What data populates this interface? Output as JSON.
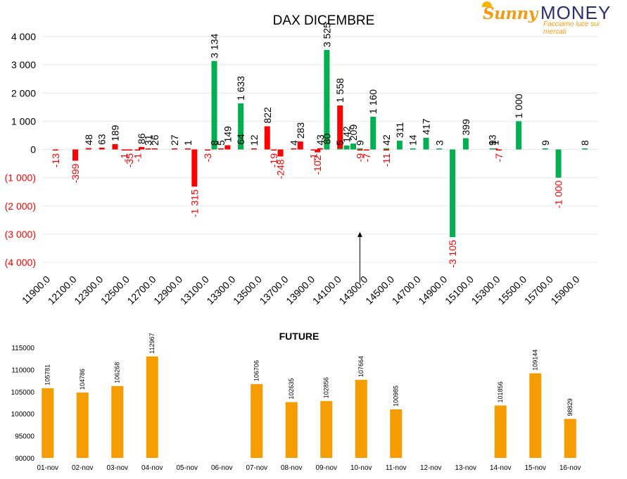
{
  "logo": {
    "brand_left": "Sunny",
    "brand_right": "MONEY",
    "tagline": "Facciamo luce sui mercati"
  },
  "colors": {
    "positive": "#00b050",
    "negative": "#ff0000",
    "future_bar": "#f59c00",
    "grid": "#e8e8e8"
  },
  "chart_data": [
    {
      "type": "bar",
      "title": "DAX DICEMBRE",
      "ylim": [
        -4000,
        4000
      ],
      "ytick_labels": [
        "4 000",
        "3 000",
        "2 000",
        "1 000",
        "0",
        "(1 000)",
        "(2 000)",
        "(3 000)",
        "(4 000)"
      ],
      "x_tick_labels": [
        "11900.0",
        "12100.0",
        "12300.0",
        "12500.0",
        "12700.0",
        "12900.0",
        "13100.0",
        "13300.0",
        "13500.0",
        "13700.0",
        "13900.0",
        "14100.0",
        "14300.0",
        "14500.0",
        "14700.0",
        "14900.0",
        "15100.0",
        "15300.0",
        "15500.0",
        "15700.0",
        "15900.0"
      ],
      "x_range": [
        11900,
        15900
      ],
      "grid": true,
      "current_level_marker": 14300,
      "series": [
        {
          "color": "negative",
          "points": [
            {
              "x": 12000,
              "y": -13,
              "label": "-13"
            },
            {
              "x": 12150,
              "y": -399,
              "label": "-399"
            },
            {
              "x": 12250,
              "y": 48,
              "label": "48"
            },
            {
              "x": 12350,
              "y": 63,
              "label": "63"
            },
            {
              "x": 12450,
              "y": 189,
              "label": "189"
            },
            {
              "x": 12520,
              "y": -1,
              "label": "-1"
            },
            {
              "x": 12560,
              "y": -35,
              "label": "-35"
            },
            {
              "x": 12620,
              "y": -1,
              "label": "-1"
            },
            {
              "x": 12650,
              "y": 86,
              "label": "86"
            },
            {
              "x": 12700,
              "y": 31,
              "label": "31"
            },
            {
              "x": 12750,
              "y": 26,
              "label": "26"
            },
            {
              "x": 12900,
              "y": 27,
              "label": "27"
            },
            {
              "x": 13000,
              "y": 1,
              "label": "1"
            },
            {
              "x": 13050,
              "y": -1315,
              "label": "-1 315"
            },
            {
              "x": 13150,
              "y": -3,
              "label": "-3"
            },
            {
              "x": 13200,
              "y": 8,
              "label": "8"
            },
            {
              "x": 13250,
              "y": 5,
              "label": "5"
            },
            {
              "x": 13300,
              "y": 149,
              "label": "149"
            },
            {
              "x": 13400,
              "y": 64,
              "label": "64"
            },
            {
              "x": 13500,
              "y": 12,
              "label": "12"
            },
            {
              "x": 13600,
              "y": 822,
              "label": "822"
            },
            {
              "x": 13650,
              "y": -19,
              "label": "-19"
            },
            {
              "x": 13700,
              "y": -248,
              "label": "-248"
            },
            {
              "x": 13800,
              "y": 4,
              "label": "4"
            },
            {
              "x": 13850,
              "y": 283,
              "label": "283"
            },
            {
              "x": 13950,
              "y": -1,
              "label": "-1"
            },
            {
              "x": 13980,
              "y": -102,
              "label": "-102"
            },
            {
              "x": 14000,
              "y": 43,
              "label": "43"
            },
            {
              "x": 14050,
              "y": 80,
              "label": "80"
            },
            {
              "x": 14150,
              "y": 1558,
              "label": "1 558"
            },
            {
              "x": 14300,
              "y": -9,
              "label": "-9"
            },
            {
              "x": 14350,
              "y": -7,
              "label": "-7"
            },
            {
              "x": 14500,
              "y": -11,
              "label": "-11"
            },
            {
              "x": 15300,
              "y": 13,
              "label": "13"
            },
            {
              "x": 15320,
              "y": 1,
              "label": "1"
            },
            {
              "x": 15350,
              "y": -7,
              "label": "-7"
            }
          ]
        },
        {
          "color": "positive",
          "points": [
            {
              "x": 13200,
              "y": 3134,
              "label": "3 134"
            },
            {
              "x": 13400,
              "y": 1633,
              "label": "1 633"
            },
            {
              "x": 14050,
              "y": 3525,
              "label": "3 525"
            },
            {
              "x": 14150,
              "y": 5,
              "label": "5"
            },
            {
              "x": 14200,
              "y": 142,
              "label": "142"
            },
            {
              "x": 14250,
              "y": 209,
              "label": "209"
            },
            {
              "x": 14300,
              "y": 9,
              "label": "9"
            },
            {
              "x": 14400,
              "y": 1160,
              "label": "1 160"
            },
            {
              "x": 14500,
              "y": 42,
              "label": "42"
            },
            {
              "x": 14600,
              "y": 311,
              "label": "311"
            },
            {
              "x": 14700,
              "y": 14,
              "label": "14"
            },
            {
              "x": 14800,
              "y": 417,
              "label": "417"
            },
            {
              "x": 14900,
              "y": 3,
              "label": "3"
            },
            {
              "x": 15000,
              "y": -3105,
              "label": "-3 105"
            },
            {
              "x": 15100,
              "y": 399,
              "label": "399"
            },
            {
              "x": 15300,
              "y": 9,
              "label": "9"
            },
            {
              "x": 15500,
              "y": 1000,
              "label": "1 000"
            },
            {
              "x": 15700,
              "y": 9,
              "label": "9"
            },
            {
              "x": 15800,
              "y": -1000,
              "label": "-1 000"
            },
            {
              "x": 16000,
              "y": 8,
              "label": "8"
            }
          ]
        }
      ]
    },
    {
      "type": "bar",
      "title": "FUTURE",
      "ylim": [
        90000,
        115000
      ],
      "ytick_labels": [
        "115000",
        "110000",
        "105000",
        "100000",
        "95000",
        "90000"
      ],
      "categories": [
        "01-nov",
        "02-nov",
        "03-nov",
        "04-nov",
        "05-nov",
        "06-nov",
        "07-nov",
        "08-nov",
        "09-nov",
        "10-nov",
        "11-nov",
        "12-nov",
        "13-nov",
        "14-nov",
        "15-nov",
        "16-nov"
      ],
      "values": [
        105781,
        104786,
        106268,
        112967,
        null,
        null,
        106706,
        102635,
        102856,
        107664,
        100985,
        null,
        null,
        101856,
        109144,
        98829
      ],
      "value_labels": [
        "105781",
        "104786",
        "106268",
        "112967",
        "",
        "",
        "106706",
        "102635",
        "102856",
        "107664",
        "100985",
        "",
        "",
        "101856",
        "109144",
        "98829"
      ],
      "grid": false
    }
  ]
}
